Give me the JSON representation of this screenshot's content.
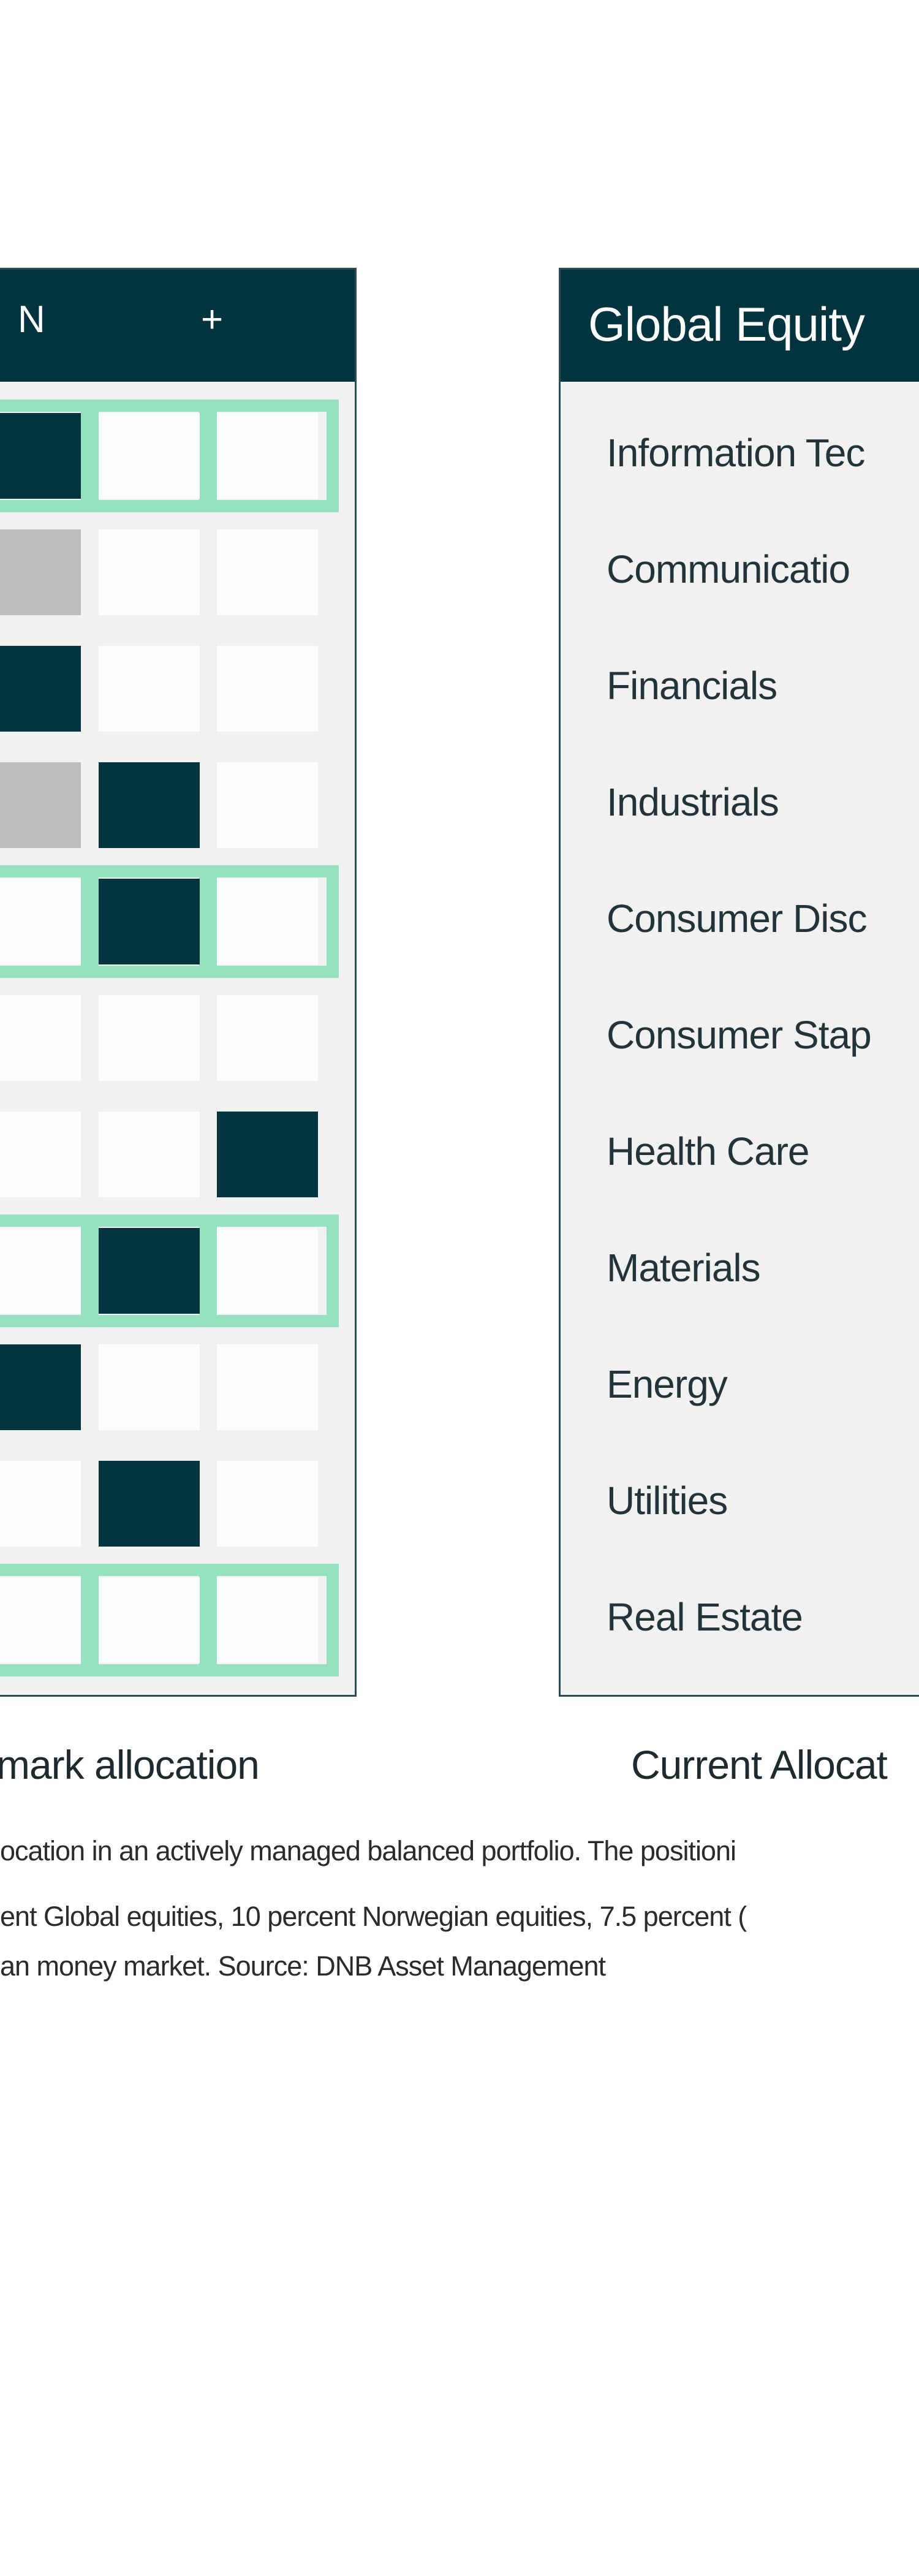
{
  "chart_data": {
    "type": "table",
    "columns": [
      "N",
      "+"
    ],
    "rows": [
      {
        "label": "Information Tec",
        "benchmark": "-",
        "current": "-",
        "highlighted": true
      },
      {
        "label": "Communicatio",
        "benchmark": "-",
        "current": "-",
        "highlighted": false
      },
      {
        "label": "Financials",
        "benchmark": "-",
        "current": "-",
        "highlighted": false
      },
      {
        "label": "Industrials",
        "benchmark": "-",
        "current": "N",
        "highlighted": false
      },
      {
        "label": "Consumer Disc",
        "benchmark": null,
        "current": "N",
        "highlighted": true
      },
      {
        "label": "Consumer Stap",
        "benchmark": null,
        "current": null,
        "highlighted": false
      },
      {
        "label": "Health Care",
        "benchmark": null,
        "current": "+",
        "highlighted": false
      },
      {
        "label": "Materials",
        "benchmark": null,
        "current": "N",
        "highlighted": true
      },
      {
        "label": "Energy",
        "benchmark": null,
        "current": "-",
        "highlighted": false
      },
      {
        "label": "Utilities",
        "benchmark": null,
        "current": "N",
        "highlighted": false
      },
      {
        "label": "Real Estate",
        "benchmark": null,
        "current": null,
        "highlighted": true
      }
    ],
    "cells": [
      [
        "dark",
        "white",
        "white"
      ],
      [
        "gray",
        "white",
        "white"
      ],
      [
        "dark",
        "white",
        "white"
      ],
      [
        "gray",
        "dark",
        "white"
      ],
      [
        "white",
        "dark",
        "white"
      ],
      [
        "white",
        "white",
        "white"
      ],
      [
        "white",
        "white",
        "dark"
      ],
      [
        "white",
        "dark",
        "white"
      ],
      [
        "dark",
        "white",
        "white"
      ],
      [
        "white",
        "dark",
        "white"
      ],
      [
        "white",
        "white",
        "white"
      ]
    ]
  },
  "left_table": {
    "col_n": "N",
    "col_plus": "+"
  },
  "right_table": {
    "title": "Global Equity"
  },
  "captions": {
    "left": "mark allocation",
    "right": "Current Allocat"
  },
  "footnote": [
    "ocation in an actively managed balanced portfolio. The positioni",
    "ent Global equities, 10 percent Norwegian equities, 7.5 percent (",
    "an money market. Source: DNB Asset Management"
  ],
  "colors": {
    "dark": "#023440",
    "highlight": "#96e2c0",
    "gray": "#bdbdbd",
    "panel": "#f1f1f1"
  }
}
